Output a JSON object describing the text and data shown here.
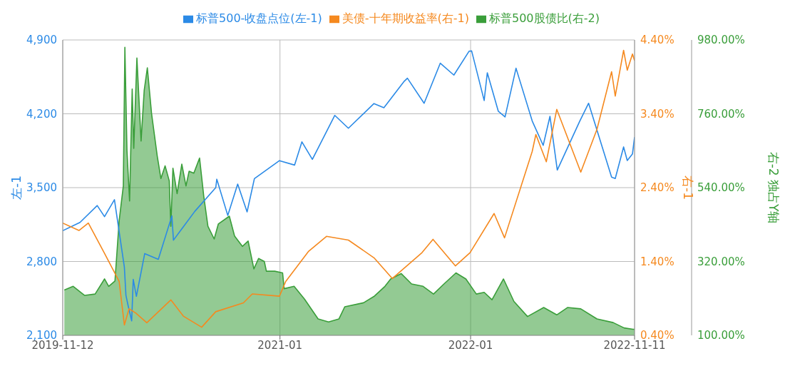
{
  "chart_data": {
    "type": "line",
    "legend": "top",
    "grid": true,
    "ylabel": "左-1",
    "y2label": "右-1",
    "y3label": "右-2 独占Y轴",
    "xlim": [
      "2019-11-12",
      "2022-11-11"
    ],
    "xticks": [
      "2019-11-12",
      "2021-01",
      "2022-01",
      "2022-11-11"
    ],
    "ylim": [
      2100,
      4900
    ],
    "yticks": [
      {
        "value": 2100,
        "label": "2,100"
      },
      {
        "value": 2800,
        "label": "2,800"
      },
      {
        "value": 3500,
        "label": "3,500"
      },
      {
        "value": 4200,
        "label": "4,200"
      },
      {
        "value": 4900,
        "label": "4,900"
      }
    ],
    "y2lim": [
      0.4,
      4.4
    ],
    "y2ticks": [
      {
        "value": 0.4,
        "label": "0.40%"
      },
      {
        "value": 1.4,
        "label": "1.40%"
      },
      {
        "value": 2.4,
        "label": "2.40%"
      },
      {
        "value": 3.4,
        "label": "3.40%"
      },
      {
        "value": 4.4,
        "label": "4.40%"
      }
    ],
    "y3lim": [
      100,
      980
    ],
    "y3ticks": [
      {
        "value": 100,
        "label": "100.00%"
      },
      {
        "value": 320,
        "label": "320.00%"
      },
      {
        "value": 540,
        "label": "540.00%"
      },
      {
        "value": 760,
        "label": "760.00%"
      },
      {
        "value": 980,
        "label": "980.00%"
      }
    ],
    "series": [
      {
        "name": "标普500-收盘点位(左-1)",
        "color": "#2b8ae6",
        "x": [
          "2019-11-12",
          "2019-12-15",
          "2020-01-17",
          "2020-01-31",
          "2020-02-19",
          "2020-03-09",
          "2020-03-12",
          "2020-03-16",
          "2020-03-23",
          "2020-03-26",
          "2020-04-01",
          "2020-04-17",
          "2020-05-13",
          "2020-06-08",
          "2020-06-11",
          "2020-07-22",
          "2020-08-31",
          "2020-09-02",
          "2020-09-23",
          "2020-10-12",
          "2020-10-30",
          "2020-11-13",
          "2020-12-31",
          "2021-01-29",
          "2021-02-12",
          "2021-03-04",
          "2021-04-16",
          "2021-05-12",
          "2021-06-30",
          "2021-07-19",
          "2021-08-27",
          "2021-09-02",
          "2021-10-04",
          "2021-11-04",
          "2021-11-30",
          "2021-12-29",
          "2022-01-03",
          "2022-01-27",
          "2022-02-02",
          "2022-02-23",
          "2022-03-08",
          "2022-03-29",
          "2022-04-29",
          "2022-05-20",
          "2022-06-02",
          "2022-06-16",
          "2022-07-29",
          "2022-08-15",
          "2022-09-28",
          "2022-10-05",
          "2022-10-21",
          "2022-10-28",
          "2022-11-07",
          "2022-11-11"
        ],
        "values": [
          3092,
          3170,
          3330,
          3225,
          3386,
          2746,
          2480,
          2386,
          2237,
          2630,
          2470,
          2875,
          2820,
          3232,
          3002,
          3276,
          3500,
          3580,
          3237,
          3534,
          3270,
          3585,
          3756,
          3714,
          3934,
          3768,
          4185,
          4063,
          4297,
          4258,
          4509,
          4537,
          4300,
          4680,
          4567,
          4793,
          4796,
          4326,
          4589,
          4225,
          4170,
          4632,
          4132,
          3901,
          4176,
          3667,
          4130,
          4300,
          3600,
          3586,
          3886,
          3757,
          3820,
          3979
        ]
      },
      {
        "name": "美债-十年期收益率(右-1)",
        "axis": "y2",
        "color": "#f5891f",
        "x": [
          "2019-11-12",
          "2019-12-13",
          "2019-12-31",
          "2020-01-31",
          "2020-02-28",
          "2020-03-09",
          "2020-03-18",
          "2020-03-31",
          "2020-04-21",
          "2020-06-06",
          "2020-06-30",
          "2020-08-04",
          "2020-08-31",
          "2020-10-23",
          "2020-11-09",
          "2020-12-31",
          "2021-01-12",
          "2021-02-25",
          "2021-03-31",
          "2021-05-12",
          "2021-06-30",
          "2021-08-04",
          "2021-09-30",
          "2021-10-21",
          "2021-12-03",
          "2021-12-31",
          "2022-02-15",
          "2022-03-07",
          "2022-04-29",
          "2022-05-06",
          "2022-05-26",
          "2022-06-15",
          "2022-07-31",
          "2022-08-31",
          "2022-09-28",
          "2022-10-05",
          "2022-10-21",
          "2022-10-28",
          "2022-11-07",
          "2022-11-11"
        ],
        "values": [
          1.92,
          1.82,
          1.92,
          1.51,
          1.13,
          0.54,
          0.76,
          0.7,
          0.57,
          0.88,
          0.66,
          0.51,
          0.72,
          0.84,
          0.96,
          0.93,
          1.13,
          1.54,
          1.74,
          1.69,
          1.45,
          1.17,
          1.52,
          1.7,
          1.34,
          1.52,
          2.05,
          1.72,
          2.89,
          3.12,
          2.75,
          3.46,
          2.61,
          3.19,
          3.97,
          3.64,
          4.26,
          3.99,
          4.21,
          4.12
        ]
      },
      {
        "name": "标普500股债比(右-2)",
        "type": "area",
        "axis": "y3",
        "color": "#3a9e3a",
        "x": [
          "2019-11-15",
          "2019-12-02",
          "2019-12-24",
          "2020-01-13",
          "2020-01-31",
          "2020-02-08",
          "2020-02-20",
          "2020-02-28",
          "2020-03-07",
          "2020-03-10",
          "2020-03-14",
          "2020-03-19",
          "2020-03-24",
          "2020-03-27",
          "2020-04-02",
          "2020-04-10",
          "2020-04-16",
          "2020-04-22",
          "2020-04-30",
          "2020-05-11",
          "2020-05-18",
          "2020-05-26",
          "2020-06-03",
          "2020-06-06",
          "2020-06-10",
          "2020-06-18",
          "2020-06-27",
          "2020-07-05",
          "2020-07-11",
          "2020-07-20",
          "2020-07-31",
          "2020-08-08",
          "2020-08-16",
          "2020-08-28",
          "2020-09-05",
          "2020-09-26",
          "2020-10-06",
          "2020-10-21",
          "2020-11-01",
          "2020-11-12",
          "2020-11-21",
          "2020-12-02",
          "2020-12-06",
          "2020-12-22",
          "2021-01-06",
          "2021-01-09",
          "2021-01-28",
          "2021-02-17",
          "2021-03-15",
          "2021-04-04",
          "2021-04-24",
          "2021-05-05",
          "2021-06-10",
          "2021-07-01",
          "2021-07-21",
          "2021-08-01",
          "2021-08-21",
          "2021-09-10",
          "2021-10-02",
          "2021-10-22",
          "2021-11-11",
          "2021-12-04",
          "2021-12-23",
          "2022-01-12",
          "2022-01-27",
          "2022-02-11",
          "2022-03-05",
          "2022-03-25",
          "2022-04-20",
          "2022-05-21",
          "2022-06-15",
          "2022-07-06",
          "2022-07-31",
          "2022-08-31",
          "2022-10-01",
          "2022-10-22",
          "2022-11-08",
          "2022-11-11"
        ],
        "values": [
          235,
          246,
          219,
          223,
          268,
          246,
          262,
          441,
          545,
          958,
          650,
          500,
          834,
          657,
          926,
          679,
          830,
          897,
          762,
          634,
          567,
          605,
          560,
          425,
          598,
          522,
          610,
          545,
          589,
          583,
          628,
          515,
          425,
          387,
          432,
          455,
          396,
          365,
          381,
          298,
          329,
          320,
          291,
          291,
          286,
          239,
          246,
          208,
          149,
          140,
          149,
          185,
          197,
          217,
          246,
          268,
          284,
          253,
          246,
          223,
          253,
          286,
          268,
          223,
          228,
          206,
          268,
          201,
          156,
          183,
          161,
          183,
          179,
          149,
          138,
          122,
          118,
          118
        ]
      }
    ]
  }
}
